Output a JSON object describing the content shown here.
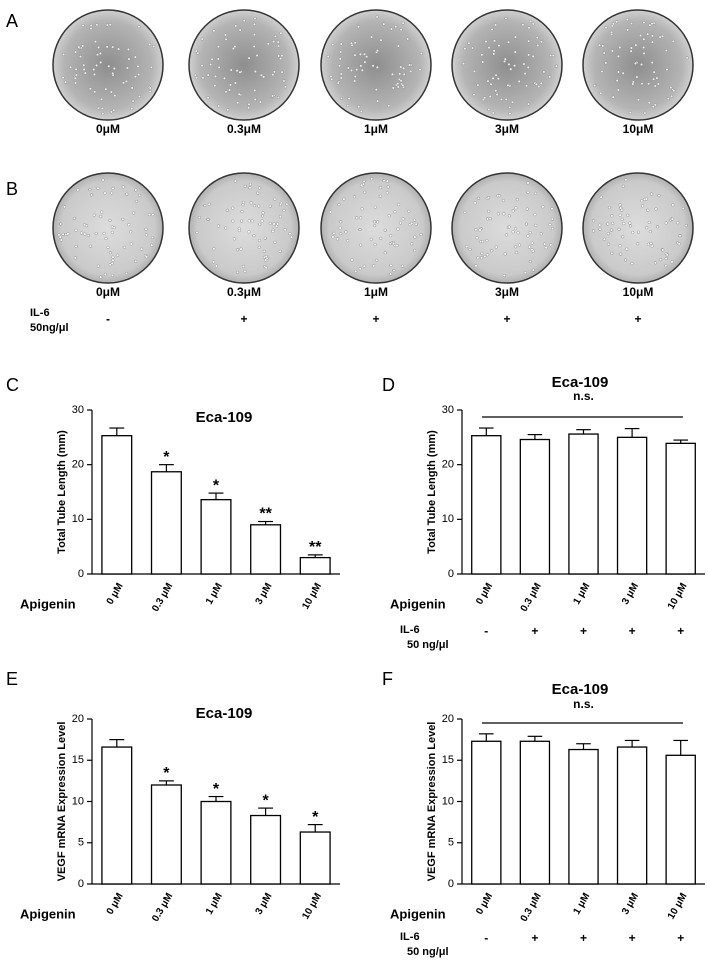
{
  "panel_letters": [
    "A",
    "B",
    "C",
    "D",
    "E",
    "F"
  ],
  "images": {
    "A": {
      "labels": [
        "0μM",
        "0.3μM",
        "1μM",
        "3μM",
        "10μM"
      ]
    },
    "B": {
      "labels": [
        "0μM",
        "0.3μM",
        "1μM",
        "3μM",
        "10μM"
      ],
      "il6_label": "IL-6",
      "il6_dose": "50ng/μl",
      "il6_signs": [
        "-",
        "+",
        "+",
        "+",
        "+"
      ]
    }
  },
  "chart_data": [
    {
      "type": "bar",
      "title": "Eca-109",
      "y_label": "Total Tube Length (mm)",
      "row_label": "Apigenin",
      "categories": [
        "0 μM",
        "0.3 μM",
        "1 μM",
        "3 μM",
        "10 μM"
      ],
      "values": [
        25.3,
        18.7,
        13.6,
        9.0,
        3.0
      ],
      "errors": [
        1.4,
        1.3,
        1.2,
        0.6,
        0.5
      ],
      "significance": [
        null,
        "*",
        "*",
        "**",
        "**"
      ],
      "color": "#ffffff",
      "ylim": [
        0,
        30
      ],
      "yticks": [
        0,
        10,
        20,
        30
      ]
    },
    {
      "type": "bar",
      "title": "Eca-109",
      "y_label": "Total Tube Length (mm)",
      "row_label": "Apigenin",
      "categories": [
        "0 μM",
        "0.3 μM",
        "1 μM",
        "3 μM",
        "10 μM"
      ],
      "values": [
        25.3,
        24.6,
        25.6,
        25.0,
        23.9
      ],
      "errors": [
        1.4,
        0.9,
        0.8,
        1.6,
        0.6
      ],
      "annotation": "n.s.",
      "il6_label": "IL-6",
      "il6_dose": "50 ng/μl",
      "il6_signs": [
        "-",
        "+",
        "+",
        "+",
        "+"
      ],
      "color": "#ffffff",
      "ylim": [
        0,
        30
      ],
      "yticks": [
        0,
        10,
        20,
        30
      ]
    },
    {
      "type": "bar",
      "title": "Eca-109",
      "y_label": "VEGF mRNA Expression Level",
      "row_label": "Apigenin",
      "categories": [
        "0 μM",
        "0.3 μM",
        "1 μM",
        "3 μM",
        "10 μM"
      ],
      "values": [
        16.6,
        12.0,
        10.0,
        8.3,
        6.3
      ],
      "errors": [
        0.9,
        0.5,
        0.6,
        0.9,
        0.9
      ],
      "significance": [
        null,
        "*",
        "*",
        "*",
        "*"
      ],
      "color": "#ffffff",
      "ylim": [
        0,
        20
      ],
      "yticks": [
        0,
        5,
        10,
        15,
        20
      ]
    },
    {
      "type": "bar",
      "title": "Eca-109",
      "y_label": "VEGF mRNA Expression Level",
      "row_label": "Apigenin",
      "categories": [
        "0 μM",
        "0.3 μM",
        "1 μM",
        "3 μM",
        "10 μM"
      ],
      "values": [
        17.3,
        17.3,
        16.3,
        16.6,
        15.6
      ],
      "errors": [
        0.9,
        0.6,
        0.7,
        0.8,
        1.8
      ],
      "annotation": "n.s.",
      "il6_label": "IL-6",
      "il6_dose": "50 ng/μl",
      "il6_signs": [
        "-",
        "+",
        "+",
        "+",
        "+"
      ],
      "color": "#ffffff",
      "ylim": [
        0,
        20
      ],
      "yticks": [
        0,
        5,
        10,
        15,
        20
      ]
    }
  ]
}
